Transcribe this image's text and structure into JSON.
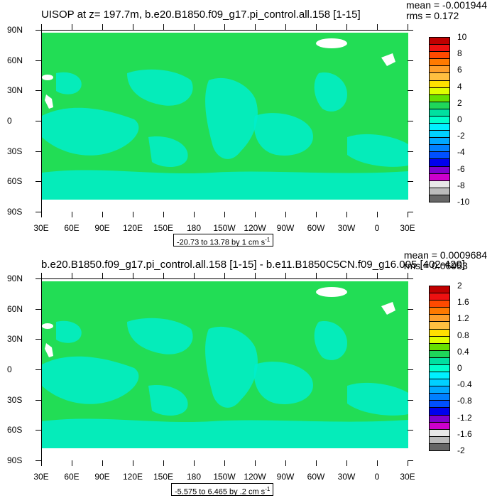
{
  "panels": [
    {
      "title": "UISOP at z= 197.7m, b.e20.B1850.f09_g17.pi_control.all.158 [1-15]",
      "stats": {
        "mean": "mean = -0.001944",
        "rms": "rms = 0.172"
      },
      "range_label": "-20.73 to 13.78 by 1 cm s",
      "range_sup": "-1",
      "colorbar": {
        "labels": [
          "10",
          "8",
          "6",
          "4",
          "2",
          "0",
          "-2",
          "-4",
          "-6",
          "-8",
          "-10"
        ],
        "colors": [
          "#c00000",
          "#ee1111",
          "#ff4a00",
          "#ff7a00",
          "#ff9f2a",
          "#ffbf40",
          "#ffe000",
          "#dfff00",
          "#66e000",
          "#1fd65a",
          "#00e0a0",
          "#00ffcc",
          "#00f0ff",
          "#00d0ff",
          "#00a8ff",
          "#0080ff",
          "#0050ff",
          "#0000ee",
          "#7f00d0",
          "#cc00cc",
          "#e8e8e8",
          "#bbbbbb",
          "#666666"
        ]
      }
    },
    {
      "title": "b.e20.B1850.f09_g17.pi_control.all.158 [1-15] - b.e11.B1850C5CN.f09_g16.005 [402-420]",
      "stats": {
        "mean": "mean = 0.0009684",
        "rms": "rms = 0.06953"
      },
      "range_label": "-5.575 to 6.465 by .2 cm s",
      "range_sup": "-1",
      "colorbar": {
        "labels": [
          "2",
          "1.6",
          "1.2",
          "0.8",
          "0.4",
          "0",
          "-0.4",
          "-0.8",
          "-1.2",
          "-1.6",
          "-2"
        ],
        "colors": [
          "#c00000",
          "#ee1111",
          "#ff4a00",
          "#ff7a00",
          "#ff9f2a",
          "#ffbf40",
          "#ffe000",
          "#dfff00",
          "#66e000",
          "#1fd65a",
          "#00e0a0",
          "#00ffcc",
          "#00f0ff",
          "#00d0ff",
          "#00a8ff",
          "#0080ff",
          "#0050ff",
          "#0000ee",
          "#7f00d0",
          "#cc00cc",
          "#e8e8e8",
          "#bbbbbb",
          "#666666"
        ]
      }
    }
  ],
  "lat_labels": [
    "90N",
    "60N",
    "30N",
    "0",
    "30S",
    "60S",
    "90S"
  ],
  "lon_labels": [
    "30E",
    "60E",
    "90E",
    "120E",
    "150E",
    "180",
    "150W",
    "120W",
    "90W",
    "60W",
    "30W",
    "0",
    "30E"
  ],
  "map_colors": {
    "land": "#22dd55",
    "ocean_light": "#00eecc",
    "ice": "#ffffff"
  }
}
